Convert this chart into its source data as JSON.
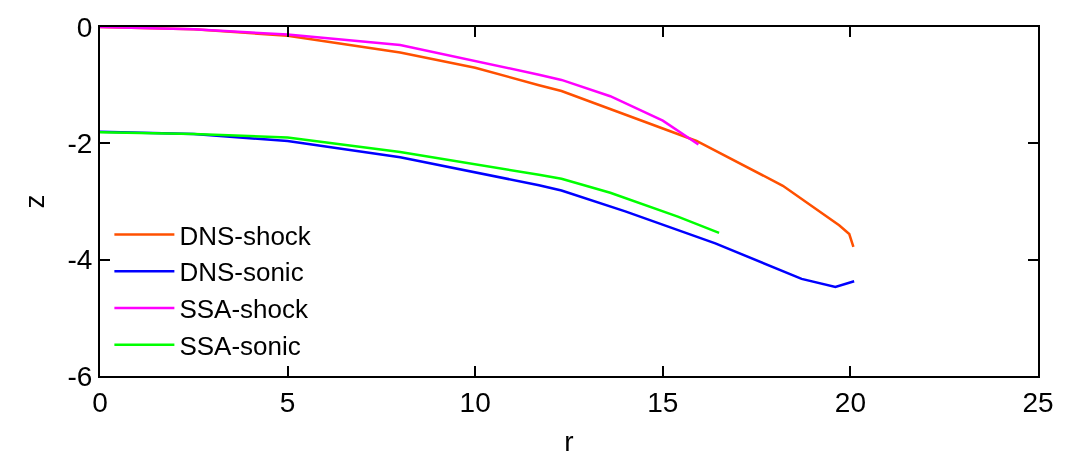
{
  "chart_data": {
    "type": "line",
    "xlabel": "r",
    "ylabel": "z",
    "xlim": [
      0,
      25
    ],
    "ylim": [
      -6,
      0
    ],
    "xticks": [
      0,
      5,
      10,
      15,
      20,
      25
    ],
    "yticks": [
      -6,
      -4,
      -2,
      0
    ],
    "legend": "bottom left",
    "marker": "none",
    "line_style": "solid",
    "series": [
      {
        "name": "DNS-shock",
        "color": "#ff5000",
        "x": [
          0,
          2.5,
          5,
          8,
          10,
          11.7,
          12.3,
          15.9,
          18.2,
          19.7,
          19.97,
          20.08
        ],
        "values": [
          0,
          -0.04,
          -0.15,
          -0.44,
          -0.7,
          -1.0,
          -1.1,
          -1.96,
          -2.73,
          -3.41,
          -3.56,
          -3.78
        ]
      },
      {
        "name": "DNS-sonic",
        "color": "#0000ff",
        "x": [
          0,
          2.5,
          5,
          8,
          11.7,
          12.3,
          14.0,
          16.4,
          18.7,
          19.6,
          20.1
        ],
        "values": [
          -1.8,
          -1.84,
          -1.96,
          -2.24,
          -2.72,
          -2.81,
          -3.17,
          -3.72,
          -4.33,
          -4.47,
          -4.37
        ]
      },
      {
        "name": "SSA-shock",
        "color": "#ff00ff",
        "x": [
          0,
          2.5,
          5,
          8,
          11.7,
          12.3,
          13.6,
          15.0,
          15.95
        ],
        "values": [
          0,
          -0.04,
          -0.13,
          -0.31,
          -0.82,
          -0.91,
          -1.19,
          -1.61,
          -2.02
        ]
      },
      {
        "name": "SSA-sonic",
        "color": "#00ff00",
        "x": [
          0,
          2.5,
          5,
          8,
          11.7,
          12.3,
          13.6,
          15.4,
          16.5
        ],
        "values": [
          -1.81,
          -1.84,
          -1.9,
          -2.15,
          -2.54,
          -2.61,
          -2.85,
          -3.26,
          -3.54
        ]
      }
    ]
  }
}
